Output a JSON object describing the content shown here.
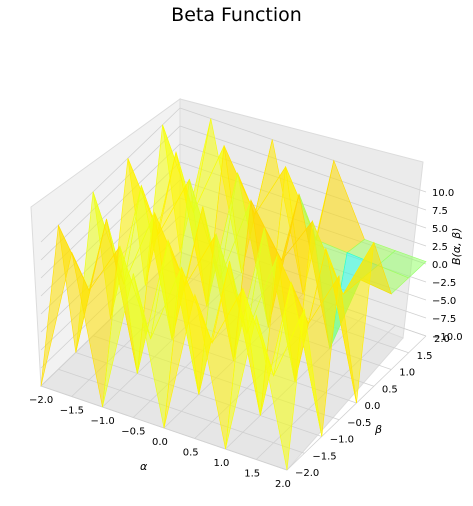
{
  "chart_data": {
    "type": "surface3d",
    "title": "Beta Function",
    "xlabel": "α",
    "ylabel": "β",
    "zlabel": "B(α, β)",
    "x_ticks": [
      "−2.0",
      "−1.5",
      "−1.0",
      "−0.5",
      "0.0",
      "0.5",
      "1.0",
      "1.5",
      "2.0"
    ],
    "y_ticks": [
      "−2.0",
      "−1.5",
      "−1.0",
      "−0.5",
      "0.0",
      "0.5",
      "1.0",
      "1.5",
      "2.0"
    ],
    "z_ticks": [
      "−10.0",
      "−7.5",
      "−5.0",
      "−2.5",
      "0.0",
      "2.5",
      "5.0",
      "7.5",
      "10.0"
    ],
    "xlim": [
      -2,
      2
    ],
    "ylim": [
      -2,
      2
    ],
    "zlim": [
      -10,
      10
    ],
    "colormap": "jet",
    "grid": true,
    "x_values": [
      -2.0,
      -1.5,
      -1.0,
      -0.5,
      0.0,
      0.5,
      1.0,
      1.5,
      2.0
    ],
    "y_values": [
      -2.0,
      -1.5,
      -1.0,
      -0.5,
      0.0,
      0.5,
      1.0,
      1.5,
      2.0
    ],
    "z_grid": [
      [
        -10,
        10,
        -10,
        10,
        -10,
        10,
        -10,
        10,
        -10
      ],
      [
        10,
        2.4,
        10,
        -1.4,
        10,
        0.94,
        10,
        -0.7,
        10
      ],
      [
        -10,
        10,
        -10,
        10,
        -10,
        10,
        -10,
        10,
        -10
      ],
      [
        10,
        -1.4,
        10,
        1.4,
        10,
        -2.4,
        10,
        1.9,
        10
      ],
      [
        -10,
        10,
        -10,
        10,
        -10,
        10,
        -10,
        10,
        -10
      ],
      [
        10,
        0.94,
        10,
        -2.4,
        10,
        3.1,
        10,
        1.3,
        10
      ],
      [
        -10,
        10,
        -10,
        10,
        -10,
        10,
        -10,
        1,
        0.5
      ],
      [
        10,
        -0.7,
        10,
        1.9,
        10,
        1.3,
        1,
        0.67,
        0.4
      ],
      [
        -10,
        10,
        -10,
        10,
        -10,
        10,
        0.5,
        0.4,
        0.33
      ]
    ]
  }
}
